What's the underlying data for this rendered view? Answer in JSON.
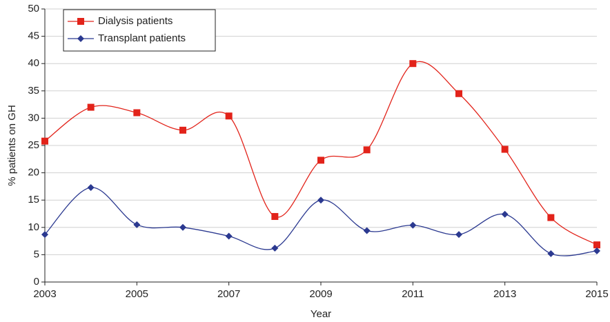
{
  "chart_data": {
    "type": "line",
    "x_label": "Year",
    "y_label": "% patients on GH",
    "x": [
      2003,
      2004,
      2005,
      2006,
      2007,
      2008,
      2009,
      2010,
      2011,
      2012,
      2013,
      2014,
      2015
    ],
    "series": [
      {
        "name": "Dialysis patients",
        "color": "#e2231a",
        "marker": "square",
        "values": [
          25.8,
          32,
          31,
          27.8,
          30.4,
          12,
          22.3,
          24.2,
          40,
          34.5,
          24.3,
          11.8,
          6.8
        ]
      },
      {
        "name": "Transplant patients",
        "color": "#2b3990",
        "marker": "diamond",
        "values": [
          8.7,
          17.3,
          10.5,
          10,
          8.4,
          6.2,
          15,
          9.4,
          10.4,
          8.7,
          12.4,
          5.2,
          5.7
        ]
      }
    ],
    "xlim": [
      2003,
      2015
    ],
    "xticks": [
      2003,
      2005,
      2007,
      2009,
      2011,
      2013,
      2015
    ],
    "ylim": [
      0,
      50
    ],
    "yticks": [
      0,
      5,
      10,
      15,
      20,
      25,
      30,
      35,
      40,
      45,
      50
    ],
    "grid": true,
    "smooth": true,
    "legend": "upper left"
  }
}
